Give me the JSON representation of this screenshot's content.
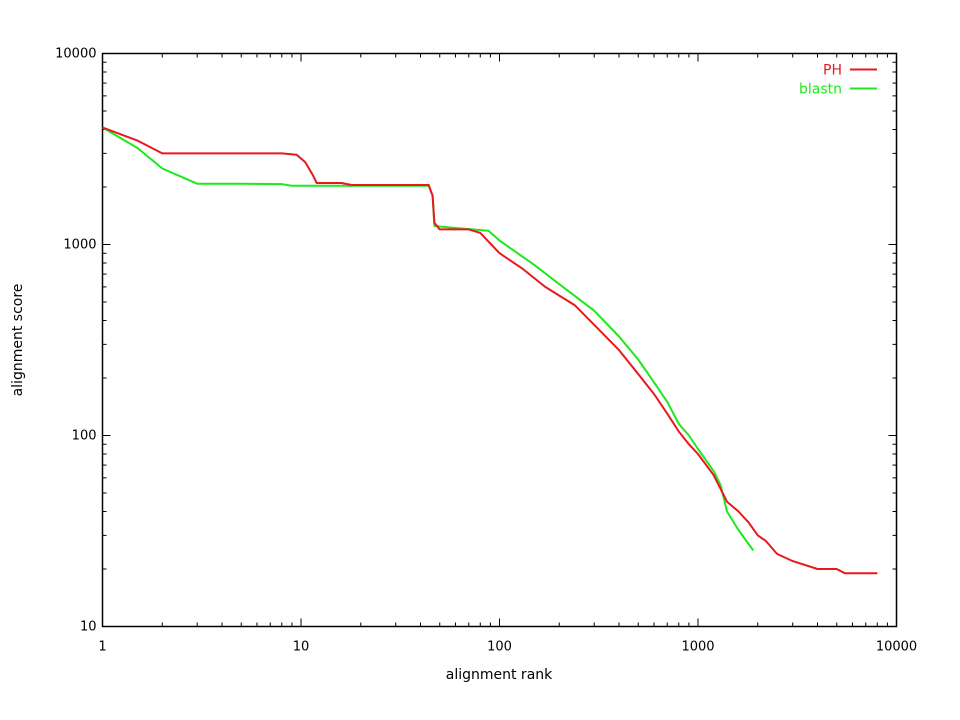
{
  "chart_data": {
    "type": "line",
    "title": "",
    "xlabel": "alignment rank",
    "ylabel": "alignment score",
    "x_scale": "log",
    "y_scale": "log",
    "xlim": [
      1,
      10000
    ],
    "ylim": [
      10,
      10000
    ],
    "x_ticks": [
      "1",
      "10",
      "100",
      "1000",
      "10000"
    ],
    "y_ticks": [
      "10",
      "100",
      "1000",
      "10000"
    ],
    "grid": false,
    "legend_position": "top-right",
    "series": [
      {
        "name": "PH",
        "color": "#e8181c",
        "points": [
          [
            1,
            4100
          ],
          [
            1.5,
            3500
          ],
          [
            2,
            3000
          ],
          [
            3,
            3000
          ],
          [
            5,
            3000
          ],
          [
            8,
            3000
          ],
          [
            9.5,
            2950
          ],
          [
            10.5,
            2700
          ],
          [
            11.5,
            2300
          ],
          [
            12,
            2100
          ],
          [
            14,
            2100
          ],
          [
            16,
            2100
          ],
          [
            18,
            2050
          ],
          [
            25,
            2050
          ],
          [
            35,
            2050
          ],
          [
            44,
            2050
          ],
          [
            46,
            1800
          ],
          [
            47,
            1300
          ],
          [
            50,
            1200
          ],
          [
            70,
            1200
          ],
          [
            80,
            1150
          ],
          [
            100,
            900
          ],
          [
            130,
            750
          ],
          [
            170,
            600
          ],
          [
            240,
            480
          ],
          [
            300,
            380
          ],
          [
            400,
            280
          ],
          [
            500,
            210
          ],
          [
            600,
            165
          ],
          [
            700,
            130
          ],
          [
            800,
            105
          ],
          [
            900,
            90
          ],
          [
            1000,
            80
          ],
          [
            1200,
            62
          ],
          [
            1400,
            45
          ],
          [
            1600,
            40
          ],
          [
            1800,
            35
          ],
          [
            2000,
            30
          ],
          [
            2200,
            28
          ],
          [
            2500,
            24
          ],
          [
            3000,
            22
          ],
          [
            4000,
            20
          ],
          [
            5000,
            20
          ],
          [
            5500,
            19
          ],
          [
            7000,
            19
          ],
          [
            8000,
            19
          ]
        ]
      },
      {
        "name": "blastn",
        "color": "#1ee81e",
        "points": [
          [
            1,
            4100
          ],
          [
            1.5,
            3200
          ],
          [
            2,
            2500
          ],
          [
            3,
            2080
          ],
          [
            5,
            2080
          ],
          [
            8,
            2070
          ],
          [
            9,
            2030
          ],
          [
            20,
            2030
          ],
          [
            44,
            2030
          ],
          [
            46,
            1800
          ],
          [
            47,
            1250
          ],
          [
            60,
            1220
          ],
          [
            88,
            1180
          ],
          [
            100,
            1050
          ],
          [
            150,
            780
          ],
          [
            200,
            620
          ],
          [
            300,
            450
          ],
          [
            400,
            330
          ],
          [
            500,
            250
          ],
          [
            600,
            190
          ],
          [
            700,
            150
          ],
          [
            800,
            115
          ],
          [
            900,
            100
          ],
          [
            1000,
            85
          ],
          [
            1200,
            65
          ],
          [
            1300,
            55
          ],
          [
            1400,
            40
          ],
          [
            1600,
            32
          ],
          [
            1900,
            25
          ]
        ]
      }
    ]
  }
}
